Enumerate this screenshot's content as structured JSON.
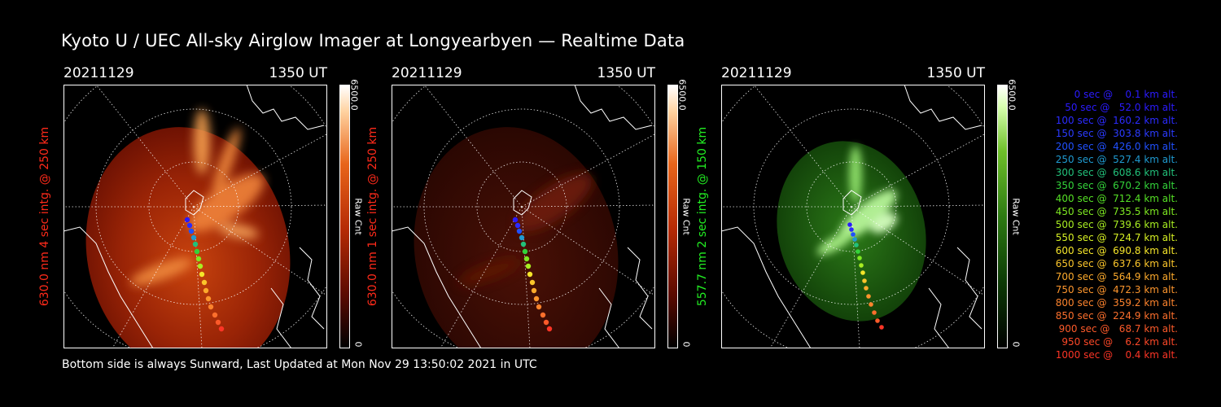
{
  "title": "Kyoto U / UEC All-sky Airglow Imager at Longyearbyen — Realtime Data",
  "footer": "Bottom side is always Sunward, Last Updated at Mon Nov 29 13:50:02 2021 in UTC",
  "panels": [
    {
      "date": "20211129",
      "time": "1350 UT",
      "side_label": "630.0 nm 4 sec intg. @ 250 km",
      "label_color": "#ff2a1a",
      "scale_max": "6500.0",
      "scale_min": "0",
      "scale_unit": "Raw Cnt",
      "colormap": "red",
      "brightness": 1.0
    },
    {
      "date": "20211129",
      "time": "1350 UT",
      "side_label": "630.0 nm 1 sec intg. @ 250 km",
      "label_color": "#ff2a1a",
      "scale_max": "6500.0",
      "scale_min": "0",
      "scale_unit": "Raw Cnt",
      "colormap": "red",
      "brightness": 0.35
    },
    {
      "date": "20211129",
      "time": "1350 UT",
      "side_label": "557.7 nm 2 sec intg. @ 150 km",
      "label_color": "#22ee22",
      "scale_max": "6500.0",
      "scale_min": "0",
      "scale_unit": "Raw Cnt",
      "colormap": "green",
      "brightness": 1.0
    }
  ],
  "legend": [
    {
      "text": "   0 sec @    0.1 km alt.",
      "color": "#2b1bff"
    },
    {
      "text": "  50 sec @   52.0 km alt.",
      "color": "#2b1bff"
    },
    {
      "text": " 100 sec @  160.2 km alt.",
      "color": "#2b2bff"
    },
    {
      "text": " 150 sec @  303.8 km alt.",
      "color": "#2b3bff"
    },
    {
      "text": " 200 sec @  426.0 km alt.",
      "color": "#2050ff"
    },
    {
      "text": " 250 sec @  527.4 km alt.",
      "color": "#1f9ad0"
    },
    {
      "text": " 300 sec @  608.6 km alt.",
      "color": "#22c07a"
    },
    {
      "text": " 350 sec @  670.2 km alt.",
      "color": "#33d33a"
    },
    {
      "text": " 400 sec @  712.4 km alt.",
      "color": "#55e025"
    },
    {
      "text": " 450 sec @  735.5 km alt.",
      "color": "#7ee822"
    },
    {
      "text": " 500 sec @  739.6 km alt.",
      "color": "#a8ee22"
    },
    {
      "text": " 550 sec @  724.7 km alt.",
      "color": "#d6f023"
    },
    {
      "text": " 600 sec @  690.8 km alt.",
      "color": "#f5e52a"
    },
    {
      "text": " 650 sec @  637.6 km alt.",
      "color": "#fbc52b"
    },
    {
      "text": " 700 sec @  564.9 km alt.",
      "color": "#fcaa2c"
    },
    {
      "text": " 750 sec @  472.3 km alt.",
      "color": "#fc952d"
    },
    {
      "text": " 800 sec @  359.2 km alt.",
      "color": "#fc832d"
    },
    {
      "text": " 850 sec @  224.9 km alt.",
      "color": "#fc6f2c"
    },
    {
      "text": " 900 sec @   68.7 km alt.",
      "color": "#fc5a2a"
    },
    {
      "text": " 950 sec @    6.2 km alt.",
      "color": "#fc4828"
    },
    {
      "text": "1000 sec @    0.4 km alt.",
      "color": "#fc3526"
    }
  ]
}
